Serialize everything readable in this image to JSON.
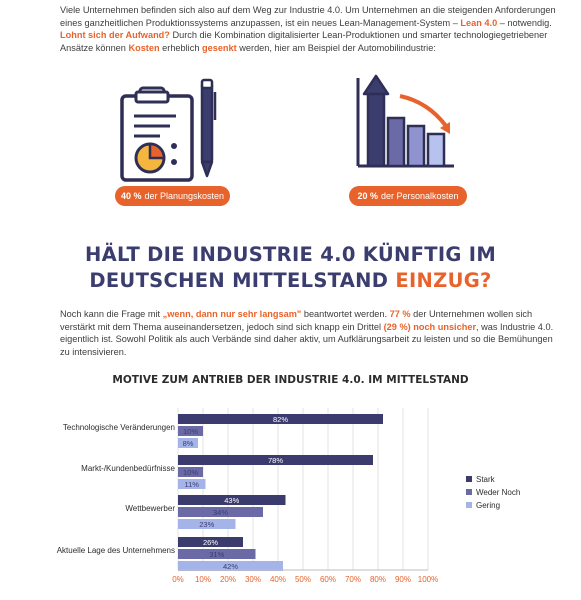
{
  "intro": {
    "line1": "Viele Unternehmen befinden sich also auf dem Weg zur Industrie 4.0. Um Unternehmen an die steigenden Anforderungen",
    "line2_a": "eines ganzheitlichen Produktionssystems anzupassen, ist ein neues Lean-Management-System – ",
    "line2_hl": "Lean 4.0",
    "line2_b": " – notwendig.",
    "line3_hl": "Lohnt sich der Aufwand?",
    "line3_b": " Durch die Kombination digitalisierter Lean-Produktionen und smarter technologiegetriebener",
    "line4_a": "Ansätze können ",
    "line4_hl1": "Kosten",
    "line4_b": " erheblich ",
    "line4_hl2": "gesenkt",
    "line4_c": " werden, hier am Beispiel der Automobilindustrie:"
  },
  "stats": [
    {
      "value": "40 %",
      "label": "der Planungskosten",
      "icon": "clipboard-pie-chart-icon"
    },
    {
      "value": "20 %",
      "label": "der Personalkosten",
      "icon": "bar-chart-decline-icon"
    }
  ],
  "headline": {
    "line1": "HÄLT DIE INDUSTRIE 4.0 KÜNFTIG IM",
    "line2_a": "DEUTSCHEN MITTELSTAND ",
    "line2_hl": "EINZUG?"
  },
  "body2": {
    "l1_a": "Noch kann die Frage mit ",
    "l1_hl": "„wenn, dann nur sehr langsam\"",
    "l1_b": " beantwortet werden. ",
    "l1_hl2": "77 %",
    "l1_c": " der Unternehmen wollen sich",
    "l2_a": "verstärkt mit dem Thema auseinandersetzen, jedoch sind sich knapp ein Drittel ",
    "l2_hl": "(29 %) noch unsicher",
    "l2_b": ", was Industrie 4.0.",
    "l3": "eigentlich ist. Sowohl Politik als auch Verbände sind daher aktiv, um Aufklärungsarbeit zu leisten und so die Bemühungen",
    "l4": "zu intensivieren."
  },
  "colors": {
    "orange": "#e8632b",
    "navy": "#3b3d6e",
    "stark": "#3c3b6e",
    "weder": "#6b6aa6",
    "gering": "#a4b3e8"
  },
  "chart_data": {
    "type": "bar",
    "orientation": "horizontal",
    "title": "MOTIVE ZUM ANTRIEB DER INDUSTRIE 4.0. IM MITTELSTAND",
    "categories": [
      "Technologische Veränderungen",
      "Markt-/Kundenbedürfnisse",
      "Wettbewerber",
      "Aktuelle Lage des Unternehmens"
    ],
    "series": [
      {
        "name": "Stark",
        "values": [
          82,
          78,
          43,
          26
        ],
        "labels": [
          "82%",
          "78%",
          "43%",
          "26%"
        ]
      },
      {
        "name": "Weder Noch",
        "values": [
          10,
          10,
          34,
          31
        ],
        "labels": [
          "10%",
          "10%",
          "34%",
          "31%"
        ]
      },
      {
        "name": "Gering",
        "values": [
          8,
          11,
          23,
          42
        ],
        "labels": [
          "8%",
          "11%",
          "23%",
          "42%"
        ]
      }
    ],
    "xlim": [
      0,
      100
    ],
    "xticks": [
      "0%",
      "10%",
      "20%",
      "30%",
      "40%",
      "50%",
      "60%",
      "70%",
      "80%",
      "90%",
      "100%"
    ],
    "grid": true,
    "legend": "right"
  }
}
